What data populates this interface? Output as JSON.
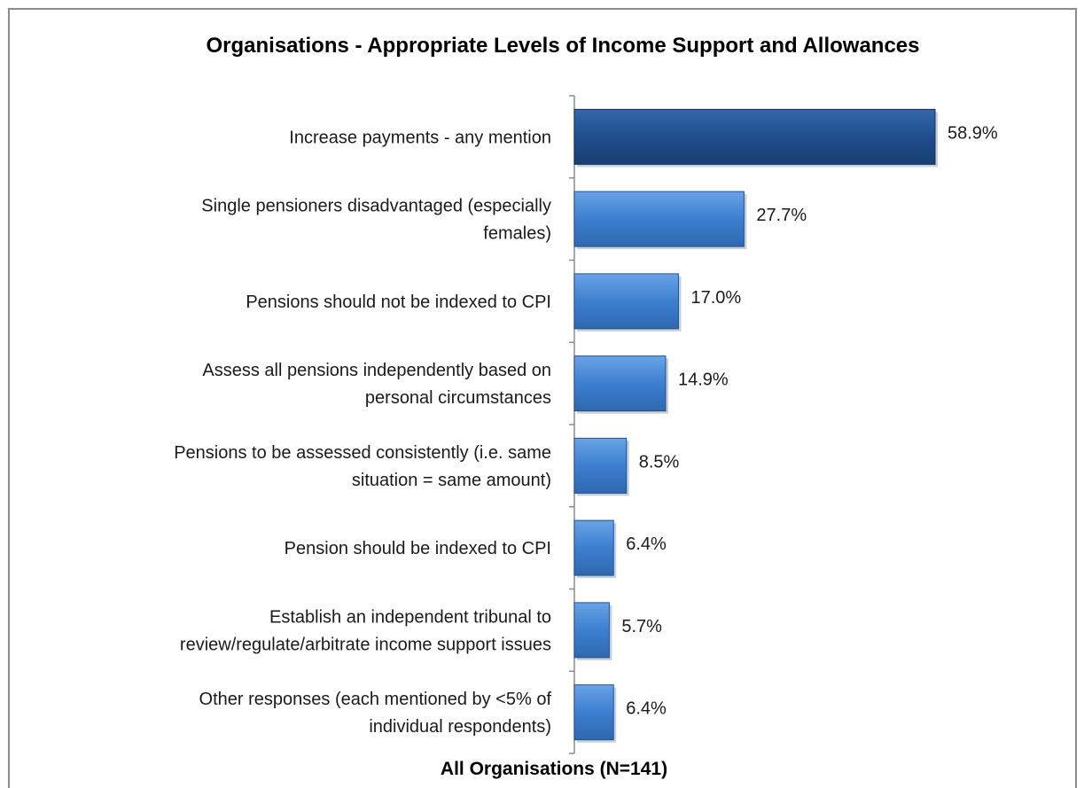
{
  "chart_data": {
    "type": "bar",
    "orientation": "horizontal",
    "title": "Organisations -  Appropriate Levels of Income Support and Allowances",
    "xlabel": "All Organisations (N=141)",
    "ylabel": "",
    "xlim": [
      0,
      60
    ],
    "grid": false,
    "categories": [
      [
        "Increase payments - any mention"
      ],
      [
        "Single pensioners disadvantaged (especially",
        "females)"
      ],
      [
        "Pensions should not be indexed to CPI"
      ],
      [
        "Assess all pensions independently based on",
        "personal circumstances"
      ],
      [
        "Pensions to be assessed consistently (i.e. same",
        "situation = same amount)"
      ],
      [
        "Pension should be indexed to CPI"
      ],
      [
        "Establish an independent tribunal to",
        "review/regulate/arbitrate income support issues"
      ],
      [
        "Other responses (each mentioned by <5% of",
        "individual respondents)"
      ]
    ],
    "values": [
      58.9,
      27.7,
      17.0,
      14.9,
      8.5,
      6.4,
      5.7,
      6.4
    ],
    "value_labels": [
      "58.9%",
      "27.7%",
      "17.0%",
      "14.9%",
      "8.5%",
      "6.4%",
      "5.7%",
      "6.4%"
    ],
    "colors": {
      "highlight_bar": "#1f4e8c",
      "bar": "#3d7fd0",
      "bar_light": "#6aa3e6",
      "axis": "#8c8c8c"
    }
  }
}
